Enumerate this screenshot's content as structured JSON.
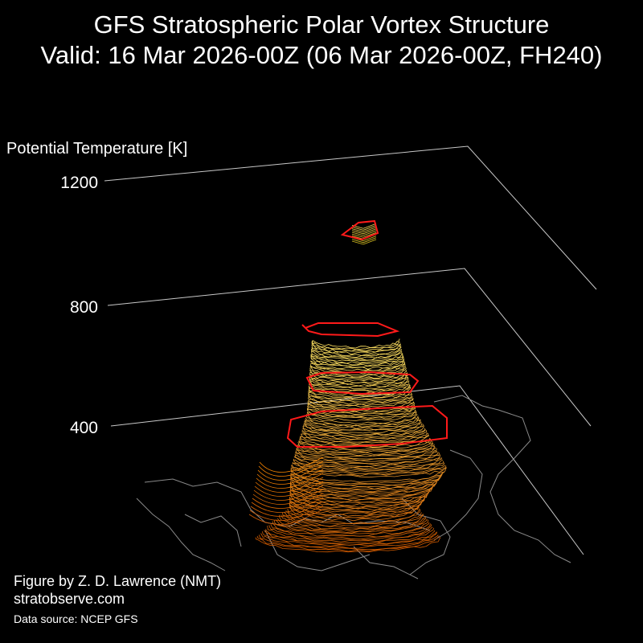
{
  "title": {
    "line1": "GFS Stratospheric Polar Vortex Structure",
    "line2": "Valid: 16 Mar 2026-00Z  (06 Mar 2026-00Z, FH240)"
  },
  "credit": {
    "author": "Figure by Z. D. Lawrence (NMT)",
    "website": "stratobserve.com",
    "source": "Data source: NCEP GFS"
  },
  "chart_data": {
    "type": "3d-isosurface",
    "zlabel": "Potential Temperature [K]",
    "ztick_labels": [
      "400",
      "800",
      "1200"
    ],
    "zticks": [
      400,
      800,
      1200
    ],
    "grid": true,
    "colors": {
      "background": "#000000",
      "grid_lines": "#c8c8c8",
      "coastlines": "#8a8a8a",
      "isosurface_low": "#d05a00",
      "isosurface_high": "#ffe060",
      "highlight_contours": "#ff1a1a"
    },
    "highlighted_levels_K": [
      430,
      600,
      780,
      1050
    ]
  }
}
